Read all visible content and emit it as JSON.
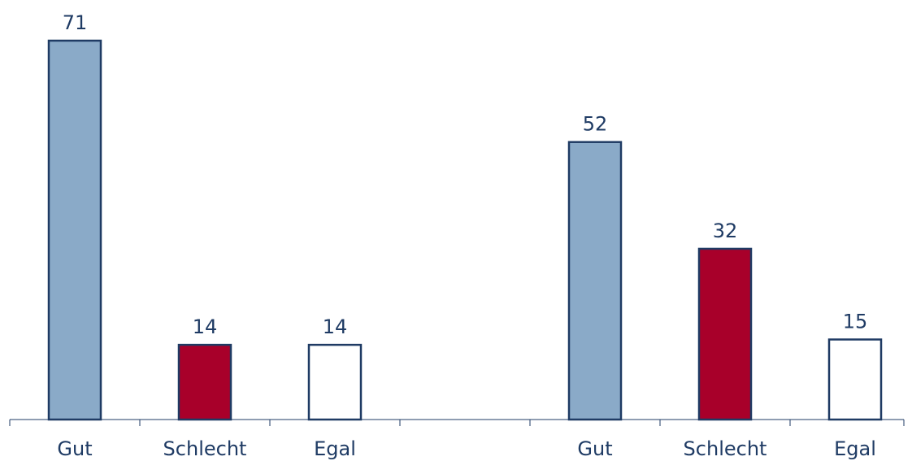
{
  "chart_data": {
    "type": "bar",
    "categories": [
      "Gut",
      "Schlecht",
      "Egal",
      "",
      "Gut",
      "Schlecht",
      "Egal"
    ],
    "values": [
      71,
      14,
      14,
      null,
      52,
      32,
      15
    ],
    "bar_colors": [
      "#8aaac8",
      "#a8002a",
      "#ffffff",
      null,
      "#8aaac8",
      "#a8002a",
      "#ffffff"
    ],
    "title": "",
    "xlabel": "",
    "ylabel": "",
    "ylim": [
      0,
      75
    ],
    "grid": false,
    "legend": "none"
  },
  "colors": {
    "text": "#1f3b64",
    "bar_outline": "#1f3b64",
    "axis": "#1f3b64"
  }
}
